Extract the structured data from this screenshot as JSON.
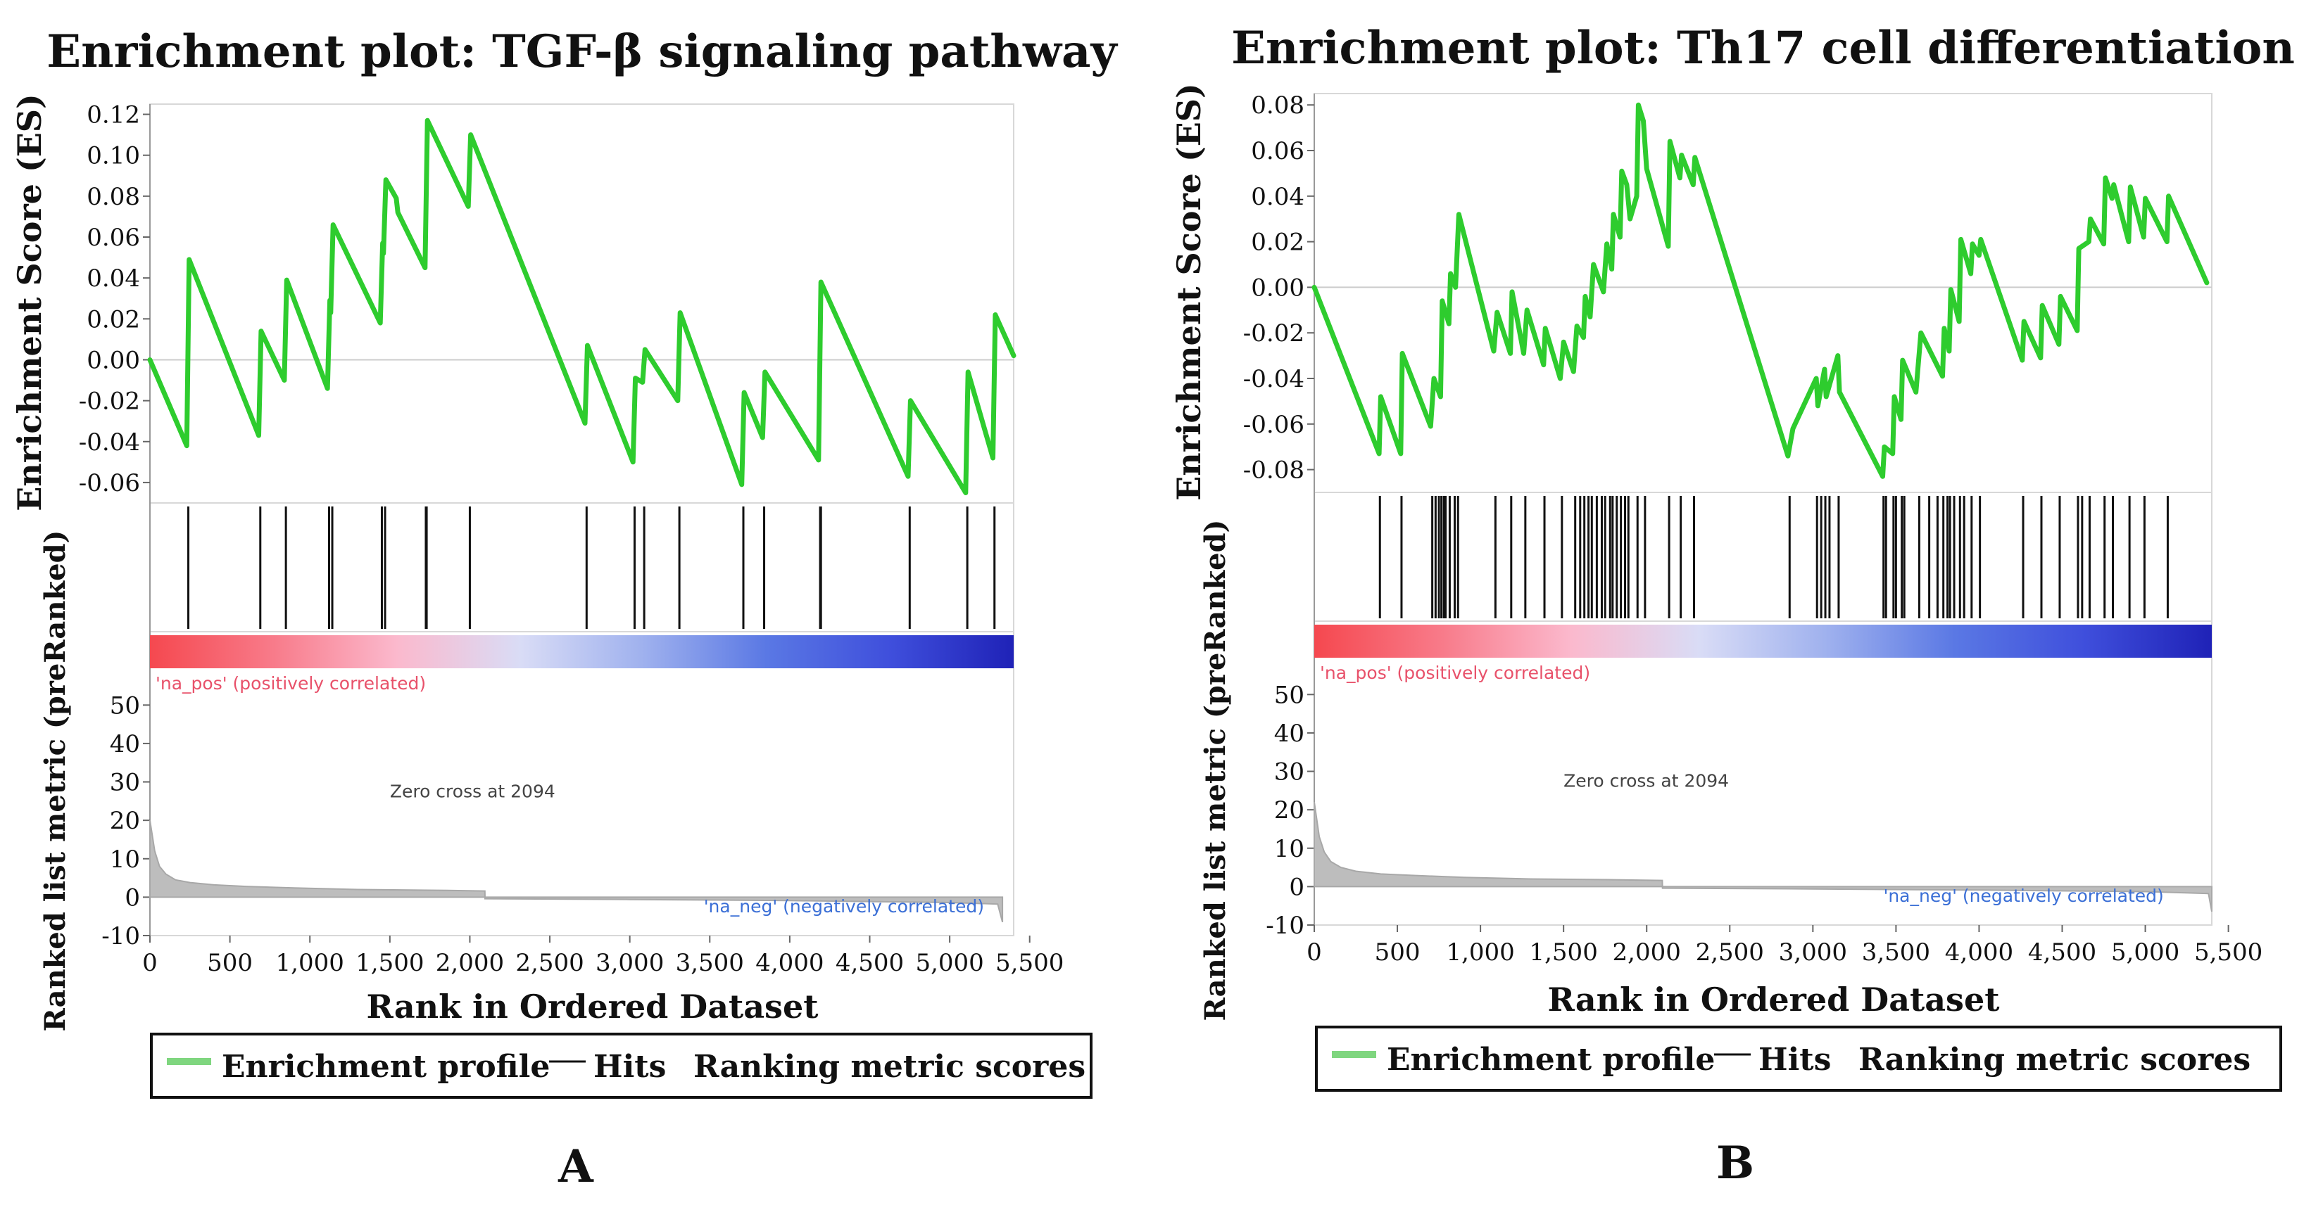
{
  "colors": {
    "es_line": "#2ecc2e",
    "hit": "#111111",
    "metric_fill": "#bdbdbd",
    "pos_text": "#e8516a",
    "neg_text": "#3b6fd6",
    "zero_line": "#cccccc"
  },
  "chart_data": [
    {
      "type": "line",
      "panel_label": "A",
      "title": "Enrichment plot: TGF-β signaling pathway",
      "es_ylabel": "Enrichment Score (ES)",
      "metric_ylabel": "Ranked list metric (preRanked)",
      "xlabel": "Rank in Ordered Dataset",
      "xlim": [
        0,
        5400
      ],
      "x_ticks": [
        0,
        500,
        1000,
        1500,
        2000,
        2500,
        3000,
        3500,
        4000,
        4500,
        5000,
        5500
      ],
      "x_tick_labels": [
        "0",
        "500",
        "1,000",
        "1,500",
        "2,000",
        "2,500",
        "3,000",
        "3,500",
        "4,000",
        "4,500",
        "5,000",
        "5,500"
      ],
      "es_ylim": [
        -0.07,
        0.125
      ],
      "es_ticks": [
        -0.06,
        -0.04,
        -0.02,
        0.0,
        0.02,
        0.04,
        0.06,
        0.08,
        0.1,
        0.12
      ],
      "es_tick_labels": [
        "-0.06",
        "-0.04",
        "-0.02",
        "0.00",
        "0.02",
        "0.04",
        "0.06",
        "0.08",
        "0.10",
        "0.12"
      ],
      "metric_ylim": [
        -10,
        55
      ],
      "metric_ticks": [
        -10,
        0,
        10,
        20,
        30,
        40,
        50
      ],
      "metric_tick_labels": [
        "-10",
        "0",
        "10",
        "20",
        "30",
        "40",
        "50"
      ],
      "es_profile": {
        "x": [
          0,
          230,
          245,
          680,
          695,
          840,
          855,
          1110,
          1125,
          1130,
          1145,
          1440,
          1455,
          1460,
          1475,
          1540,
          1550,
          1720,
          1735,
          1990,
          2005,
          2720,
          2735,
          3020,
          3035,
          3080,
          3095,
          3300,
          3315,
          3700,
          3715,
          3830,
          3845,
          4180,
          4195,
          4740,
          4755,
          5100,
          5115,
          5270,
          5285,
          5400
        ],
        "y": [
          0.0,
          -0.042,
          0.049,
          -0.037,
          0.014,
          -0.01,
          0.039,
          -0.014,
          0.029,
          0.023,
          0.066,
          0.018,
          0.057,
          0.052,
          0.088,
          0.079,
          0.072,
          0.045,
          0.117,
          0.075,
          0.11,
          -0.031,
          0.007,
          -0.05,
          -0.009,
          -0.011,
          0.005,
          -0.02,
          0.023,
          -0.061,
          -0.016,
          -0.038,
          -0.006,
          -0.049,
          0.038,
          -0.057,
          -0.02,
          -0.065,
          -0.006,
          -0.048,
          0.022,
          0.002
        ]
      },
      "hits": [
        240,
        690,
        850,
        1120,
        1140,
        1450,
        1470,
        1725,
        1730,
        2000,
        2730,
        3030,
        3090,
        3310,
        3710,
        3840,
        4190,
        4195,
        4750,
        5110,
        5280
      ],
      "color_band_colors": [
        "#f5484f",
        "#f87b8a",
        "#fbb9cd",
        "#d9dcf6",
        "#9fb1ee",
        "#5a78e4",
        "#3f4fdc",
        "#1f22b7"
      ],
      "pos_label": "'na_pos' (positively correlated)",
      "neg_label": "'na_neg' (negatively correlated)",
      "zero_cross": 2094,
      "zero_cross_label": "Zero cross at 2094",
      "metric_profile": {
        "x": [
          0,
          30,
          60,
          100,
          160,
          250,
          400,
          600,
          900,
          1300,
          1800,
          2094,
          2095,
          3000,
          4000,
          5000,
          5300,
          5330
        ],
        "y": [
          20,
          12,
          8,
          6,
          4.5,
          3.8,
          3.2,
          2.8,
          2.4,
          2.0,
          1.8,
          1.6,
          -0.4,
          -0.6,
          -0.9,
          -1.4,
          -1.8,
          -6.5
        ]
      },
      "legend": [
        "Enrichment profile",
        "Hits",
        "Ranking metric scores"
      ]
    },
    {
      "type": "line",
      "panel_label": "B",
      "title": "Enrichment plot: Th17 cell differentiation",
      "es_ylabel": "Enrichment Score (ES)",
      "metric_ylabel": "Ranked list metric (preRanked)",
      "xlabel": "Rank in Ordered Dataset",
      "xlim": [
        0,
        5400
      ],
      "x_ticks": [
        0,
        500,
        1000,
        1500,
        2000,
        2500,
        3000,
        3500,
        4000,
        4500,
        5000,
        5500
      ],
      "x_tick_labels": [
        "0",
        "500",
        "1,000",
        "1,500",
        "2,000",
        "2,500",
        "3,000",
        "3,500",
        "4,000",
        "4,500",
        "5,000",
        "5,500"
      ],
      "es_ylim": [
        -0.09,
        0.085
      ],
      "es_ticks": [
        -0.08,
        -0.06,
        -0.04,
        -0.02,
        0.0,
        0.02,
        0.04,
        0.06,
        0.08
      ],
      "es_tick_labels": [
        "-0.08",
        "-0.06",
        "-0.04",
        "-0.02",
        "0.00",
        "0.02",
        "0.04",
        "0.06",
        "0.08"
      ],
      "metric_ylim": [
        -10,
        55
      ],
      "metric_ticks": [
        -10,
        0,
        10,
        20,
        30,
        40,
        50
      ],
      "metric_tick_labels": [
        "-10",
        "0",
        "10",
        "20",
        "30",
        "40",
        "50"
      ],
      "es_profile": {
        "x": [
          0,
          390,
          400,
          520,
          530,
          700,
          720,
          760,
          770,
          810,
          820,
          850,
          870,
          1080,
          1100,
          1180,
          1190,
          1260,
          1280,
          1380,
          1390,
          1480,
          1500,
          1560,
          1580,
          1620,
          1630,
          1660,
          1680,
          1740,
          1760,
          1790,
          1800,
          1840,
          1850,
          1880,
          1900,
          1940,
          1950,
          1980,
          2000,
          2130,
          2140,
          2200,
          2210,
          2280,
          2290,
          2850,
          2880,
          3020,
          3030,
          3070,
          3080,
          3150,
          3160,
          3420,
          3430,
          3480,
          3490,
          3530,
          3540,
          3620,
          3650,
          3780,
          3790,
          3820,
          3830,
          3880,
          3890,
          3950,
          3960,
          4000,
          4010,
          4260,
          4270,
          4370,
          4380,
          4480,
          4490,
          4590,
          4600,
          4660,
          4670,
          4750,
          4760,
          4800,
          4810,
          4900,
          4910,
          4990,
          5000,
          5130,
          5140,
          5370
        ],
        "y": [
          0.0,
          -0.073,
          -0.048,
          -0.073,
          -0.029,
          -0.061,
          -0.04,
          -0.048,
          -0.006,
          -0.016,
          0.006,
          0.0,
          0.032,
          -0.028,
          -0.011,
          -0.029,
          -0.002,
          -0.029,
          -0.01,
          -0.034,
          -0.018,
          -0.04,
          -0.024,
          -0.037,
          -0.017,
          -0.022,
          -0.004,
          -0.013,
          0.01,
          -0.002,
          0.019,
          0.008,
          0.032,
          0.022,
          0.051,
          0.045,
          0.03,
          0.04,
          0.08,
          0.073,
          0.052,
          0.018,
          0.064,
          0.048,
          0.058,
          0.045,
          0.057,
          -0.074,
          -0.062,
          -0.04,
          -0.052,
          -0.036,
          -0.048,
          -0.03,
          -0.046,
          -0.083,
          -0.07,
          -0.073,
          -0.048,
          -0.058,
          -0.032,
          -0.046,
          -0.02,
          -0.039,
          -0.018,
          -0.028,
          -0.001,
          -0.015,
          0.021,
          0.006,
          0.019,
          0.014,
          0.021,
          -0.032,
          -0.015,
          -0.031,
          -0.008,
          -0.025,
          -0.004,
          -0.019,
          0.017,
          0.02,
          0.03,
          0.019,
          0.048,
          0.039,
          0.045,
          0.02,
          0.044,
          0.022,
          0.039,
          0.02,
          0.04,
          0.002
        ]
      },
      "hits": [
        395,
        525,
        710,
        730,
        750,
        765,
        780,
        790,
        815,
        845,
        865,
        1090,
        1185,
        1270,
        1385,
        1490,
        1570,
        1600,
        1625,
        1650,
        1670,
        1700,
        1730,
        1750,
        1780,
        1795,
        1820,
        1845,
        1870,
        1890,
        1945,
        1990,
        2135,
        2205,
        2285,
        2860,
        3025,
        3050,
        3075,
        3100,
        3155,
        3425,
        3440,
        3485,
        3500,
        3535,
        3550,
        3640,
        3700,
        3750,
        3785,
        3810,
        3825,
        3850,
        3885,
        3910,
        3955,
        4005,
        4265,
        4375,
        4485,
        4595,
        4620,
        4665,
        4755,
        4805,
        4905,
        4995,
        5135
      ],
      "color_band_colors": [
        "#f5484f",
        "#f87b8a",
        "#fbb9cd",
        "#d9dcf6",
        "#9fb1ee",
        "#5a78e4",
        "#3f4fdc",
        "#1f22b7"
      ],
      "pos_label": "'na_pos' (positively correlated)",
      "neg_label": "'na_neg' (negatively correlated)",
      "zero_cross": 2094,
      "zero_cross_label": "Zero cross at 2094",
      "metric_profile": {
        "x": [
          0,
          30,
          60,
          100,
          160,
          250,
          400,
          600,
          900,
          1300,
          1800,
          2094,
          2095,
          3000,
          4000,
          5000,
          5380,
          5400
        ],
        "y": [
          22,
          13,
          9,
          6.5,
          5,
          4,
          3.3,
          2.9,
          2.4,
          2.0,
          1.8,
          1.6,
          -0.4,
          -0.6,
          -0.9,
          -1.3,
          -1.8,
          -6.5
        ]
      },
      "legend": [
        "Enrichment profile",
        "Hits",
        "Ranking metric scores"
      ]
    }
  ]
}
